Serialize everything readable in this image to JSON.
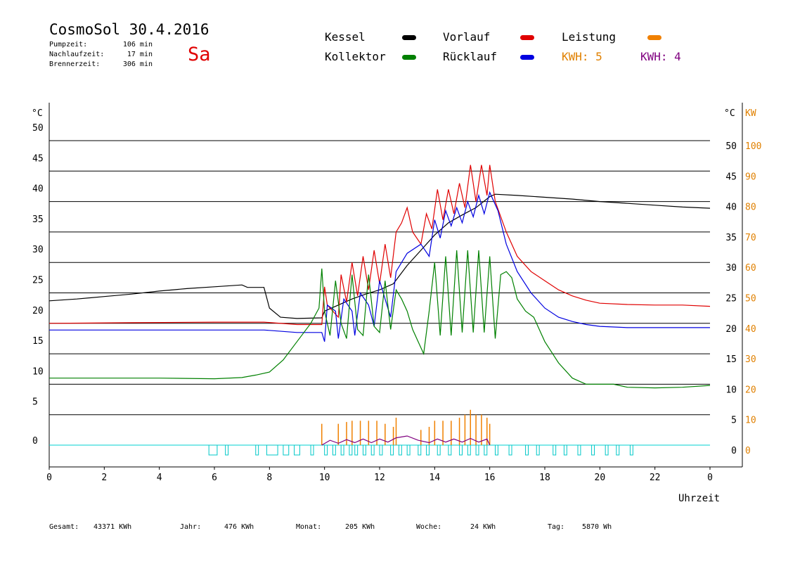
{
  "header": {
    "title": "CosmoSol 30.4.2016",
    "day": "Sa",
    "stats": [
      {
        "label": "Pumpzeit:",
        "value": "106 min"
      },
      {
        "label": "Nachlaufzeit:",
        "value": "17 min"
      },
      {
        "label": "Brennerzeit:",
        "value": "306 min"
      }
    ]
  },
  "legend": {
    "kessel": {
      "label": "Kessel",
      "color": "#000000"
    },
    "vorlauf": {
      "label": "Vorlauf",
      "color": "#e00000"
    },
    "leistung": {
      "label": "Leistung",
      "color": "#f08000"
    },
    "kollektor": {
      "label": "Kollektor",
      "color": "#008000"
    },
    "ruecklauf": {
      "label": "Rücklauf",
      "color": "#0000e0"
    },
    "kwh1": {
      "label": "KWH: 5",
      "color": "#e08000"
    },
    "kwh2": {
      "label": "KWH: 4",
      "color": "#800080"
    }
  },
  "footer": [
    {
      "label": "Gesamt:",
      "value": "43371 KWh"
    },
    {
      "label": "Jahr:",
      "value": "476 KWh"
    },
    {
      "label": "Monat:",
      "value": "205 KWh"
    },
    {
      "label": "Woche:",
      "value": "24 KWh"
    },
    {
      "label": "Tag:",
      "value": "5870 Wh"
    }
  ],
  "chart_data": {
    "type": "line",
    "xlabel": "Uhrzeit",
    "ylabel_left": "°C",
    "ylabel_right": "°C",
    "ylabel_right2": "KW",
    "xlim": [
      0,
      24
    ],
    "ylim": [
      -3.5,
      54
    ],
    "x_ticks": [
      "0",
      "2",
      "4",
      "6",
      "8",
      "10",
      "12",
      "14",
      "16",
      "18",
      "20",
      "22",
      "0"
    ],
    "y_ticks": [
      0,
      5,
      10,
      15,
      20,
      25,
      30,
      35,
      40,
      45,
      50
    ],
    "y_ticks_kw": [
      0,
      10,
      20,
      30,
      40,
      50,
      60,
      70,
      80,
      90,
      100
    ],
    "grid": true,
    "series": [
      {
        "name": "Kessel",
        "color": "#000000",
        "points": [
          [
            0,
            23.7
          ],
          [
            1,
            24.0
          ],
          [
            2,
            24.4
          ],
          [
            3,
            24.8
          ],
          [
            4,
            25.3
          ],
          [
            5,
            25.7
          ],
          [
            6,
            26.0
          ],
          [
            7,
            26.3
          ],
          [
            7.2,
            25.9
          ],
          [
            7.8,
            25.9
          ],
          [
            8.0,
            22.5
          ],
          [
            8.4,
            21.0
          ],
          [
            9.0,
            20.8
          ],
          [
            9.9,
            20.9
          ],
          [
            10.0,
            22.0
          ],
          [
            10.5,
            23.0
          ],
          [
            11.0,
            24.0
          ],
          [
            11.5,
            24.8
          ],
          [
            12.0,
            25.5
          ],
          [
            12.5,
            26.5
          ],
          [
            13.0,
            29.5
          ],
          [
            13.5,
            32.0
          ],
          [
            14.0,
            34.5
          ],
          [
            14.5,
            36.5
          ],
          [
            15.0,
            37.8
          ],
          [
            15.5,
            39.0
          ],
          [
            16.0,
            40.8
          ],
          [
            16.2,
            41.2
          ],
          [
            17,
            41.0
          ],
          [
            18,
            40.7
          ],
          [
            19,
            40.4
          ],
          [
            20,
            40.0
          ],
          [
            21,
            39.7
          ],
          [
            22,
            39.4
          ],
          [
            23,
            39.1
          ],
          [
            24,
            38.9
          ]
        ]
      },
      {
        "name": "Vorlauf",
        "color": "#e00000",
        "points": [
          [
            0,
            20.0
          ],
          [
            3,
            20.1
          ],
          [
            6,
            20.2
          ],
          [
            7.8,
            20.2
          ],
          [
            9.0,
            19.8
          ],
          [
            9.9,
            19.8
          ],
          [
            10.0,
            26.0
          ],
          [
            10.1,
            23.0
          ],
          [
            10.5,
            21.0
          ],
          [
            10.6,
            28.0
          ],
          [
            10.8,
            23.5
          ],
          [
            11.0,
            30.0
          ],
          [
            11.2,
            24.5
          ],
          [
            11.4,
            31.0
          ],
          [
            11.6,
            25.5
          ],
          [
            11.8,
            32.0
          ],
          [
            12.0,
            26.5
          ],
          [
            12.2,
            33.0
          ],
          [
            12.4,
            27.5
          ],
          [
            12.6,
            35.0
          ],
          [
            12.8,
            36.5
          ],
          [
            13.0,
            39.0
          ],
          [
            13.2,
            35.0
          ],
          [
            13.5,
            33.0
          ],
          [
            13.7,
            38.0
          ],
          [
            13.9,
            35.5
          ],
          [
            14.1,
            42.0
          ],
          [
            14.3,
            37.0
          ],
          [
            14.5,
            42.0
          ],
          [
            14.7,
            38.0
          ],
          [
            14.9,
            43.0
          ],
          [
            15.1,
            39.0
          ],
          [
            15.3,
            46.0
          ],
          [
            15.5,
            40.0
          ],
          [
            15.7,
            46.0
          ],
          [
            15.9,
            41.0
          ],
          [
            16.0,
            46.0
          ],
          [
            16.2,
            40.0
          ],
          [
            16.6,
            35.0
          ],
          [
            17,
            31.0
          ],
          [
            17.5,
            28.5
          ],
          [
            18,
            27.0
          ],
          [
            18.5,
            25.5
          ],
          [
            19,
            24.5
          ],
          [
            19.5,
            23.8
          ],
          [
            20,
            23.3
          ],
          [
            21,
            23.1
          ],
          [
            22,
            23.0
          ],
          [
            23,
            23.0
          ],
          [
            24,
            22.8
          ]
        ]
      },
      {
        "name": "Rücklauf",
        "color": "#0000e0",
        "points": [
          [
            0,
            18.9
          ],
          [
            3,
            18.9
          ],
          [
            6,
            18.9
          ],
          [
            7.8,
            18.9
          ],
          [
            9.0,
            18.5
          ],
          [
            9.9,
            18.5
          ],
          [
            10.0,
            17.0
          ],
          [
            10.1,
            23.0
          ],
          [
            10.4,
            22.0
          ],
          [
            10.5,
            17.5
          ],
          [
            10.7,
            24.0
          ],
          [
            11.0,
            22.0
          ],
          [
            11.1,
            18.0
          ],
          [
            11.3,
            25.0
          ],
          [
            11.6,
            23.0
          ],
          [
            11.8,
            19.5
          ],
          [
            12.0,
            27.0
          ],
          [
            12.2,
            24.0
          ],
          [
            12.4,
            21.0
          ],
          [
            12.6,
            28.5
          ],
          [
            12.8,
            30.0
          ],
          [
            13.0,
            31.5
          ],
          [
            13.5,
            33.0
          ],
          [
            13.8,
            31.0
          ],
          [
            14.0,
            37.0
          ],
          [
            14.2,
            34.0
          ],
          [
            14.4,
            38.5
          ],
          [
            14.6,
            36.0
          ],
          [
            14.8,
            39.0
          ],
          [
            15.0,
            36.5
          ],
          [
            15.2,
            40.0
          ],
          [
            15.4,
            37.5
          ],
          [
            15.6,
            41.0
          ],
          [
            15.8,
            38.0
          ],
          [
            16.0,
            41.5
          ],
          [
            16.3,
            38.5
          ],
          [
            16.6,
            33.0
          ],
          [
            17,
            28.5
          ],
          [
            17.5,
            25.0
          ],
          [
            18,
            22.5
          ],
          [
            18.5,
            21.0
          ],
          [
            19,
            20.3
          ],
          [
            19.5,
            19.8
          ],
          [
            20,
            19.5
          ],
          [
            21,
            19.3
          ],
          [
            22,
            19.3
          ],
          [
            24,
            19.3
          ]
        ]
      },
      {
        "name": "Kollektor",
        "color": "#008000",
        "points": [
          [
            0,
            11.0
          ],
          [
            2,
            11.0
          ],
          [
            4,
            11.0
          ],
          [
            6,
            10.9
          ],
          [
            7.0,
            11.1
          ],
          [
            7.5,
            11.5
          ],
          [
            8.0,
            12.0
          ],
          [
            8.5,
            14.0
          ],
          [
            9.0,
            17.0
          ],
          [
            9.5,
            20.0
          ],
          [
            9.8,
            22.5
          ],
          [
            9.9,
            29.0
          ],
          [
            10.0,
            22.0
          ],
          [
            10.2,
            18.0
          ],
          [
            10.4,
            27.0
          ],
          [
            10.6,
            20.0
          ],
          [
            10.8,
            17.5
          ],
          [
            11.0,
            28.0
          ],
          [
            11.2,
            19.0
          ],
          [
            11.4,
            18.0
          ],
          [
            11.6,
            28.0
          ],
          [
            11.8,
            19.5
          ],
          [
            12.0,
            18.5
          ],
          [
            12.2,
            27.0
          ],
          [
            12.4,
            19.0
          ],
          [
            12.6,
            25.5
          ],
          [
            12.8,
            24.0
          ],
          [
            13.0,
            22.0
          ],
          [
            13.2,
            19.0
          ],
          [
            13.4,
            17.0
          ],
          [
            13.6,
            15.0
          ],
          [
            13.8,
            22.0
          ],
          [
            14.0,
            30.0
          ],
          [
            14.2,
            18.0
          ],
          [
            14.4,
            31.0
          ],
          [
            14.6,
            18.0
          ],
          [
            14.8,
            32.0
          ],
          [
            15.0,
            18.5
          ],
          [
            15.2,
            32.0
          ],
          [
            15.4,
            18.5
          ],
          [
            15.6,
            32.0
          ],
          [
            15.8,
            18.5
          ],
          [
            16.0,
            31.0
          ],
          [
            16.2,
            17.5
          ],
          [
            16.4,
            28.0
          ],
          [
            16.6,
            28.5
          ],
          [
            16.8,
            27.5
          ],
          [
            17.0,
            24.0
          ],
          [
            17.3,
            22.0
          ],
          [
            17.6,
            21.0
          ],
          [
            18,
            17.0
          ],
          [
            18.5,
            13.5
          ],
          [
            19,
            11.0
          ],
          [
            19.5,
            10.0
          ],
          [
            20,
            10.0
          ],
          [
            20.5,
            10.0
          ],
          [
            21,
            9.5
          ],
          [
            22,
            9.4
          ],
          [
            23,
            9.5
          ],
          [
            24,
            9.8
          ]
        ]
      },
      {
        "name": "Leistung",
        "color": "#f08000",
        "spikes": [
          [
            9.9,
            3.5
          ],
          [
            10.5,
            3.5
          ],
          [
            10.8,
            3.8
          ],
          [
            11.0,
            4.0
          ],
          [
            11.3,
            4.0
          ],
          [
            11.6,
            4.0
          ],
          [
            11.9,
            4.0
          ],
          [
            12.2,
            3.5
          ],
          [
            12.5,
            3.0
          ],
          [
            12.6,
            4.5
          ],
          [
            13.5,
            2.5
          ],
          [
            13.8,
            3.0
          ],
          [
            14.0,
            4.0
          ],
          [
            14.3,
            4.0
          ],
          [
            14.6,
            4.0
          ],
          [
            14.9,
            4.5
          ],
          [
            15.1,
            5.0
          ],
          [
            15.3,
            5.8
          ],
          [
            15.5,
            5.0
          ],
          [
            15.7,
            5.0
          ],
          [
            15.9,
            4.5
          ],
          [
            16.0,
            3.5
          ]
        ]
      },
      {
        "name": "Leistung2",
        "color": "#800080",
        "points": [
          [
            9.9,
            0
          ],
          [
            10.2,
            0.8
          ],
          [
            10.5,
            0.3
          ],
          [
            10.8,
            0.9
          ],
          [
            11.1,
            0.4
          ],
          [
            11.4,
            1.0
          ],
          [
            11.7,
            0.4
          ],
          [
            12.0,
            1.0
          ],
          [
            12.3,
            0.5
          ],
          [
            12.6,
            1.2
          ],
          [
            13.0,
            1.5
          ],
          [
            13.4,
            0.8
          ],
          [
            13.8,
            0.4
          ],
          [
            14.1,
            1.0
          ],
          [
            14.4,
            0.5
          ],
          [
            14.7,
            1.0
          ],
          [
            15.0,
            0.5
          ],
          [
            15.3,
            1.1
          ],
          [
            15.6,
            0.5
          ],
          [
            15.9,
            1.0
          ],
          [
            16.0,
            0
          ]
        ]
      }
    ],
    "pump_markers": [
      [
        5.8,
        6.1
      ],
      [
        6.4,
        6.5
      ],
      [
        7.5,
        7.6
      ],
      [
        7.9,
        8.3
      ],
      [
        8.5,
        8.7
      ],
      [
        8.9,
        9.1
      ],
      [
        9.5,
        9.6
      ],
      [
        10.0,
        10.1
      ],
      [
        10.3,
        10.4
      ],
      [
        10.6,
        10.7
      ],
      [
        10.9,
        11.0
      ],
      [
        11.1,
        11.2
      ],
      [
        11.4,
        11.5
      ],
      [
        11.7,
        11.8
      ],
      [
        12.0,
        12.1
      ],
      [
        12.4,
        12.5
      ],
      [
        12.7,
        12.8
      ],
      [
        13.0,
        13.1
      ],
      [
        13.4,
        13.5
      ],
      [
        13.7,
        13.8
      ],
      [
        14.1,
        14.2
      ],
      [
        14.5,
        14.6
      ],
      [
        14.9,
        15.0
      ],
      [
        15.2,
        15.3
      ],
      [
        15.5,
        15.6
      ],
      [
        15.8,
        15.9
      ],
      [
        16.2,
        16.3
      ],
      [
        16.7,
        16.8
      ],
      [
        17.3,
        17.4
      ],
      [
        17.7,
        17.8
      ],
      [
        18.3,
        18.4
      ],
      [
        18.7,
        18.8
      ],
      [
        19.2,
        19.3
      ],
      [
        19.7,
        19.8
      ],
      [
        20.2,
        20.3
      ],
      [
        20.6,
        20.7
      ],
      [
        21.1,
        21.2
      ]
    ]
  }
}
